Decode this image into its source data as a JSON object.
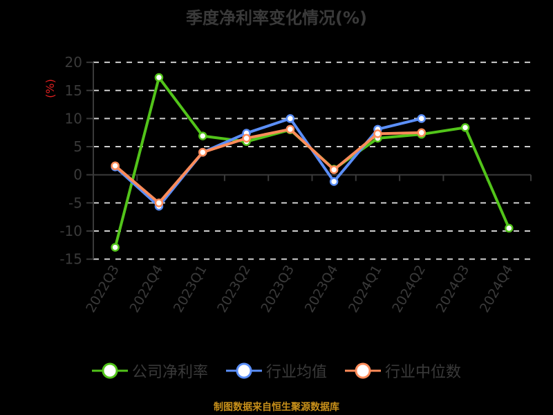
{
  "title": "季度净利率变化情况(%)",
  "source": "制图数据来自恒生聚源数据库",
  "colors": {
    "company": "#52c41a",
    "industry_mean": "#5b8ff9",
    "industry_median": "#ff8c5a",
    "grid": "#d0d0d0",
    "axis": "#3a3a3a",
    "ylabel": "#e02020",
    "source": "#c8901a"
  },
  "legend": [
    {
      "label": "公司净利率",
      "color": "#52c41a"
    },
    {
      "label": "行业均值",
      "color": "#5b8ff9"
    },
    {
      "label": "行业中位数",
      "color": "#ff8c5a"
    }
  ],
  "chart_data": {
    "type": "line",
    "title": "季度净利率变化情况(%)",
    "xlabel": "",
    "ylabel": "(%)",
    "ylim": [
      -15,
      20
    ],
    "yticks": [
      20,
      15,
      10,
      5,
      0,
      -5,
      -10,
      -15
    ],
    "grid": true,
    "legend_position": "bottom",
    "categories": [
      "2022Q3",
      "2022Q4",
      "2023Q1",
      "2023Q2",
      "2023Q3",
      "2023Q4",
      "2024Q1",
      "2024Q2",
      "2024Q3",
      "2024Q4"
    ],
    "series": [
      {
        "name": "公司净利率",
        "color": "#52c41a",
        "values": [
          -12.9,
          17.3,
          6.9,
          5.9,
          8.0,
          1.0,
          6.5,
          7.2,
          8.4,
          -9.5
        ]
      },
      {
        "name": "行业均值",
        "color": "#5b8ff9",
        "values": [
          1.4,
          -5.6,
          4.0,
          7.4,
          10.0,
          -1.2,
          8.1,
          10.0,
          null,
          null
        ]
      },
      {
        "name": "行业中位数",
        "color": "#ff8c5a",
        "values": [
          1.6,
          -5.0,
          4.0,
          6.5,
          8.1,
          0.9,
          7.3,
          7.5,
          null,
          null
        ]
      }
    ]
  }
}
